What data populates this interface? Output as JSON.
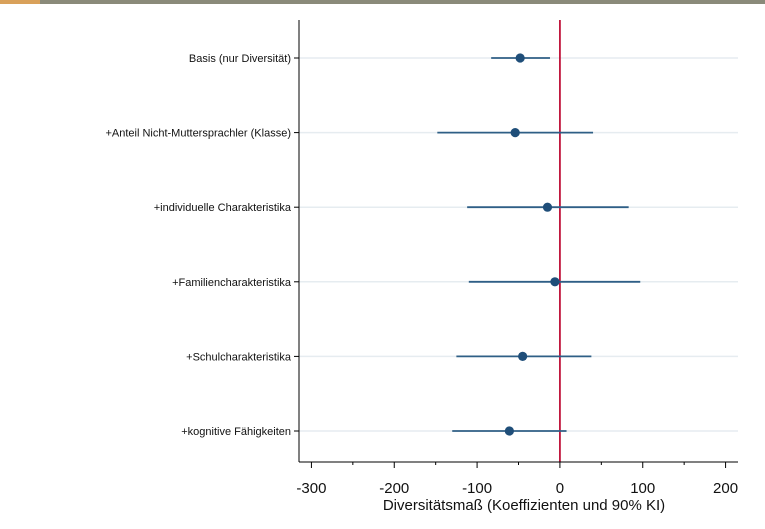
{
  "chart_data": {
    "type": "scatter",
    "title": "",
    "xlabel": "Diversitätsmaß (Koeffizienten und 90% KI)",
    "ylabel": "",
    "xlim": [
      -315,
      215
    ],
    "x_ticks": [
      -300,
      -200,
      -100,
      0,
      100,
      200
    ],
    "x_tick_labels": [
      "-300",
      "-200",
      "-100",
      "0",
      "100",
      "200"
    ],
    "x_minor_ticks": [
      -250,
      -150,
      -50,
      50,
      150
    ],
    "reference_line": 0,
    "grid": "horizontal",
    "legend": "none",
    "categories": [
      "Basis (nur Diversität)",
      "+Anteil Nicht-Muttersprachler (Klasse)",
      "+individuelle Charakteristika",
      "+Familiencharakteristika",
      "+Schulcharakteristika",
      "+kognitive Fähigkeiten"
    ],
    "estimates": [
      -48,
      -54,
      -15,
      -6,
      -45,
      -61
    ],
    "ci_low": [
      -83,
      -148,
      -112,
      -110,
      -125,
      -130
    ],
    "ci_high": [
      -12,
      40,
      83,
      97,
      38,
      8
    ],
    "colors": {
      "marker": "#1f4e79",
      "ci": "#2f5f86",
      "reference": "#c0143c",
      "grid": "#e6ecf0",
      "axis": "#000000"
    }
  }
}
